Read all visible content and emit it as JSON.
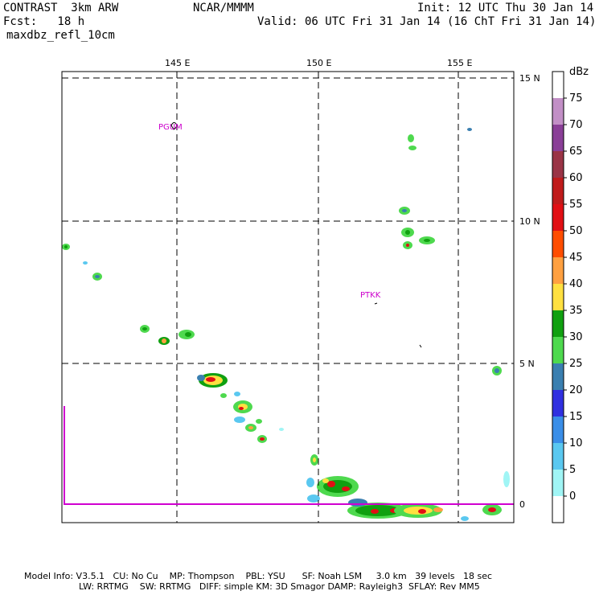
{
  "header": {
    "model": "CONTRAST  3km ARW",
    "source": "NCAR/MMMM",
    "init": "Init: 12 UTC Thu 30 Jan 14",
    "fcst": "Fcst:   18 h",
    "valid": "Valid: 06 UTC Fri 31 Jan 14 (16 ChT Fri 31 Jan 14)",
    "field": "maxdbz_refl_10cm"
  },
  "axes": {
    "lon_labels": [
      "145 E",
      "150 E",
      "155 E"
    ],
    "lat_labels": [
      "15 N",
      "10 N",
      "5 N",
      "0"
    ]
  },
  "stations": [
    "PGUM",
    "PTKK"
  ],
  "legend": {
    "unit": "dBz",
    "levels": [
      "75",
      "70",
      "65",
      "60",
      "55",
      "50",
      "45",
      "40",
      "35",
      "30",
      "25",
      "20",
      "15",
      "10",
      "5",
      "0"
    ],
    "colors": [
      "#ffffff",
      "#c28fc6",
      "#8a3f97",
      "#9a3446",
      "#c01b1b",
      "#e10f14",
      "#ff4d00",
      "#ffa040",
      "#ffe040",
      "#10a010",
      "#4ed94e",
      "#3a7fb0",
      "#3030e0",
      "#3a8ee8",
      "#5ac8f0",
      "#a0f5f5",
      "#ffffff"
    ]
  },
  "footer": {
    "line1": "Model Info: V3.5.1   CU: No Cu    MP: Thompson    PBL: YSU      SF: Noah LSM     3.0 km   39 levels   18 sec",
    "line2": "LW: RRTMG    SW: RRTMG   DIFF: simple KM: 3D Smagor DAMP: Rayleigh3  SFLAY: Rev MM5"
  }
}
